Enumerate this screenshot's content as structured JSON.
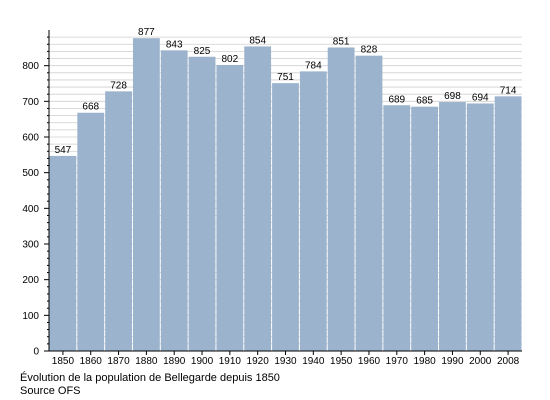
{
  "chart_data": {
    "type": "bar",
    "categories": [
      "1850",
      "1860",
      "1870",
      "1880",
      "1890",
      "1900",
      "1910",
      "1920",
      "1930",
      "1940",
      "1950",
      "1960",
      "1970",
      "1980",
      "1990",
      "2000",
      "2008"
    ],
    "values": [
      547,
      668,
      728,
      877,
      843,
      825,
      802,
      854,
      751,
      784,
      851,
      828,
      689,
      685,
      698,
      694,
      714
    ],
    "xlabel": "",
    "ylabel": "",
    "ylim": [
      0,
      900
    ],
    "yticks": [
      0,
      100,
      200,
      300,
      400,
      500,
      600,
      700,
      800
    ],
    "grid": true,
    "legend": "none",
    "bar_color": "#9bb3cc",
    "grid_color": "#cfcfcf"
  },
  "caption": {
    "line1": "Évolution de la population de Bellegarde depuis 1850",
    "line2": "Source OFS"
  }
}
